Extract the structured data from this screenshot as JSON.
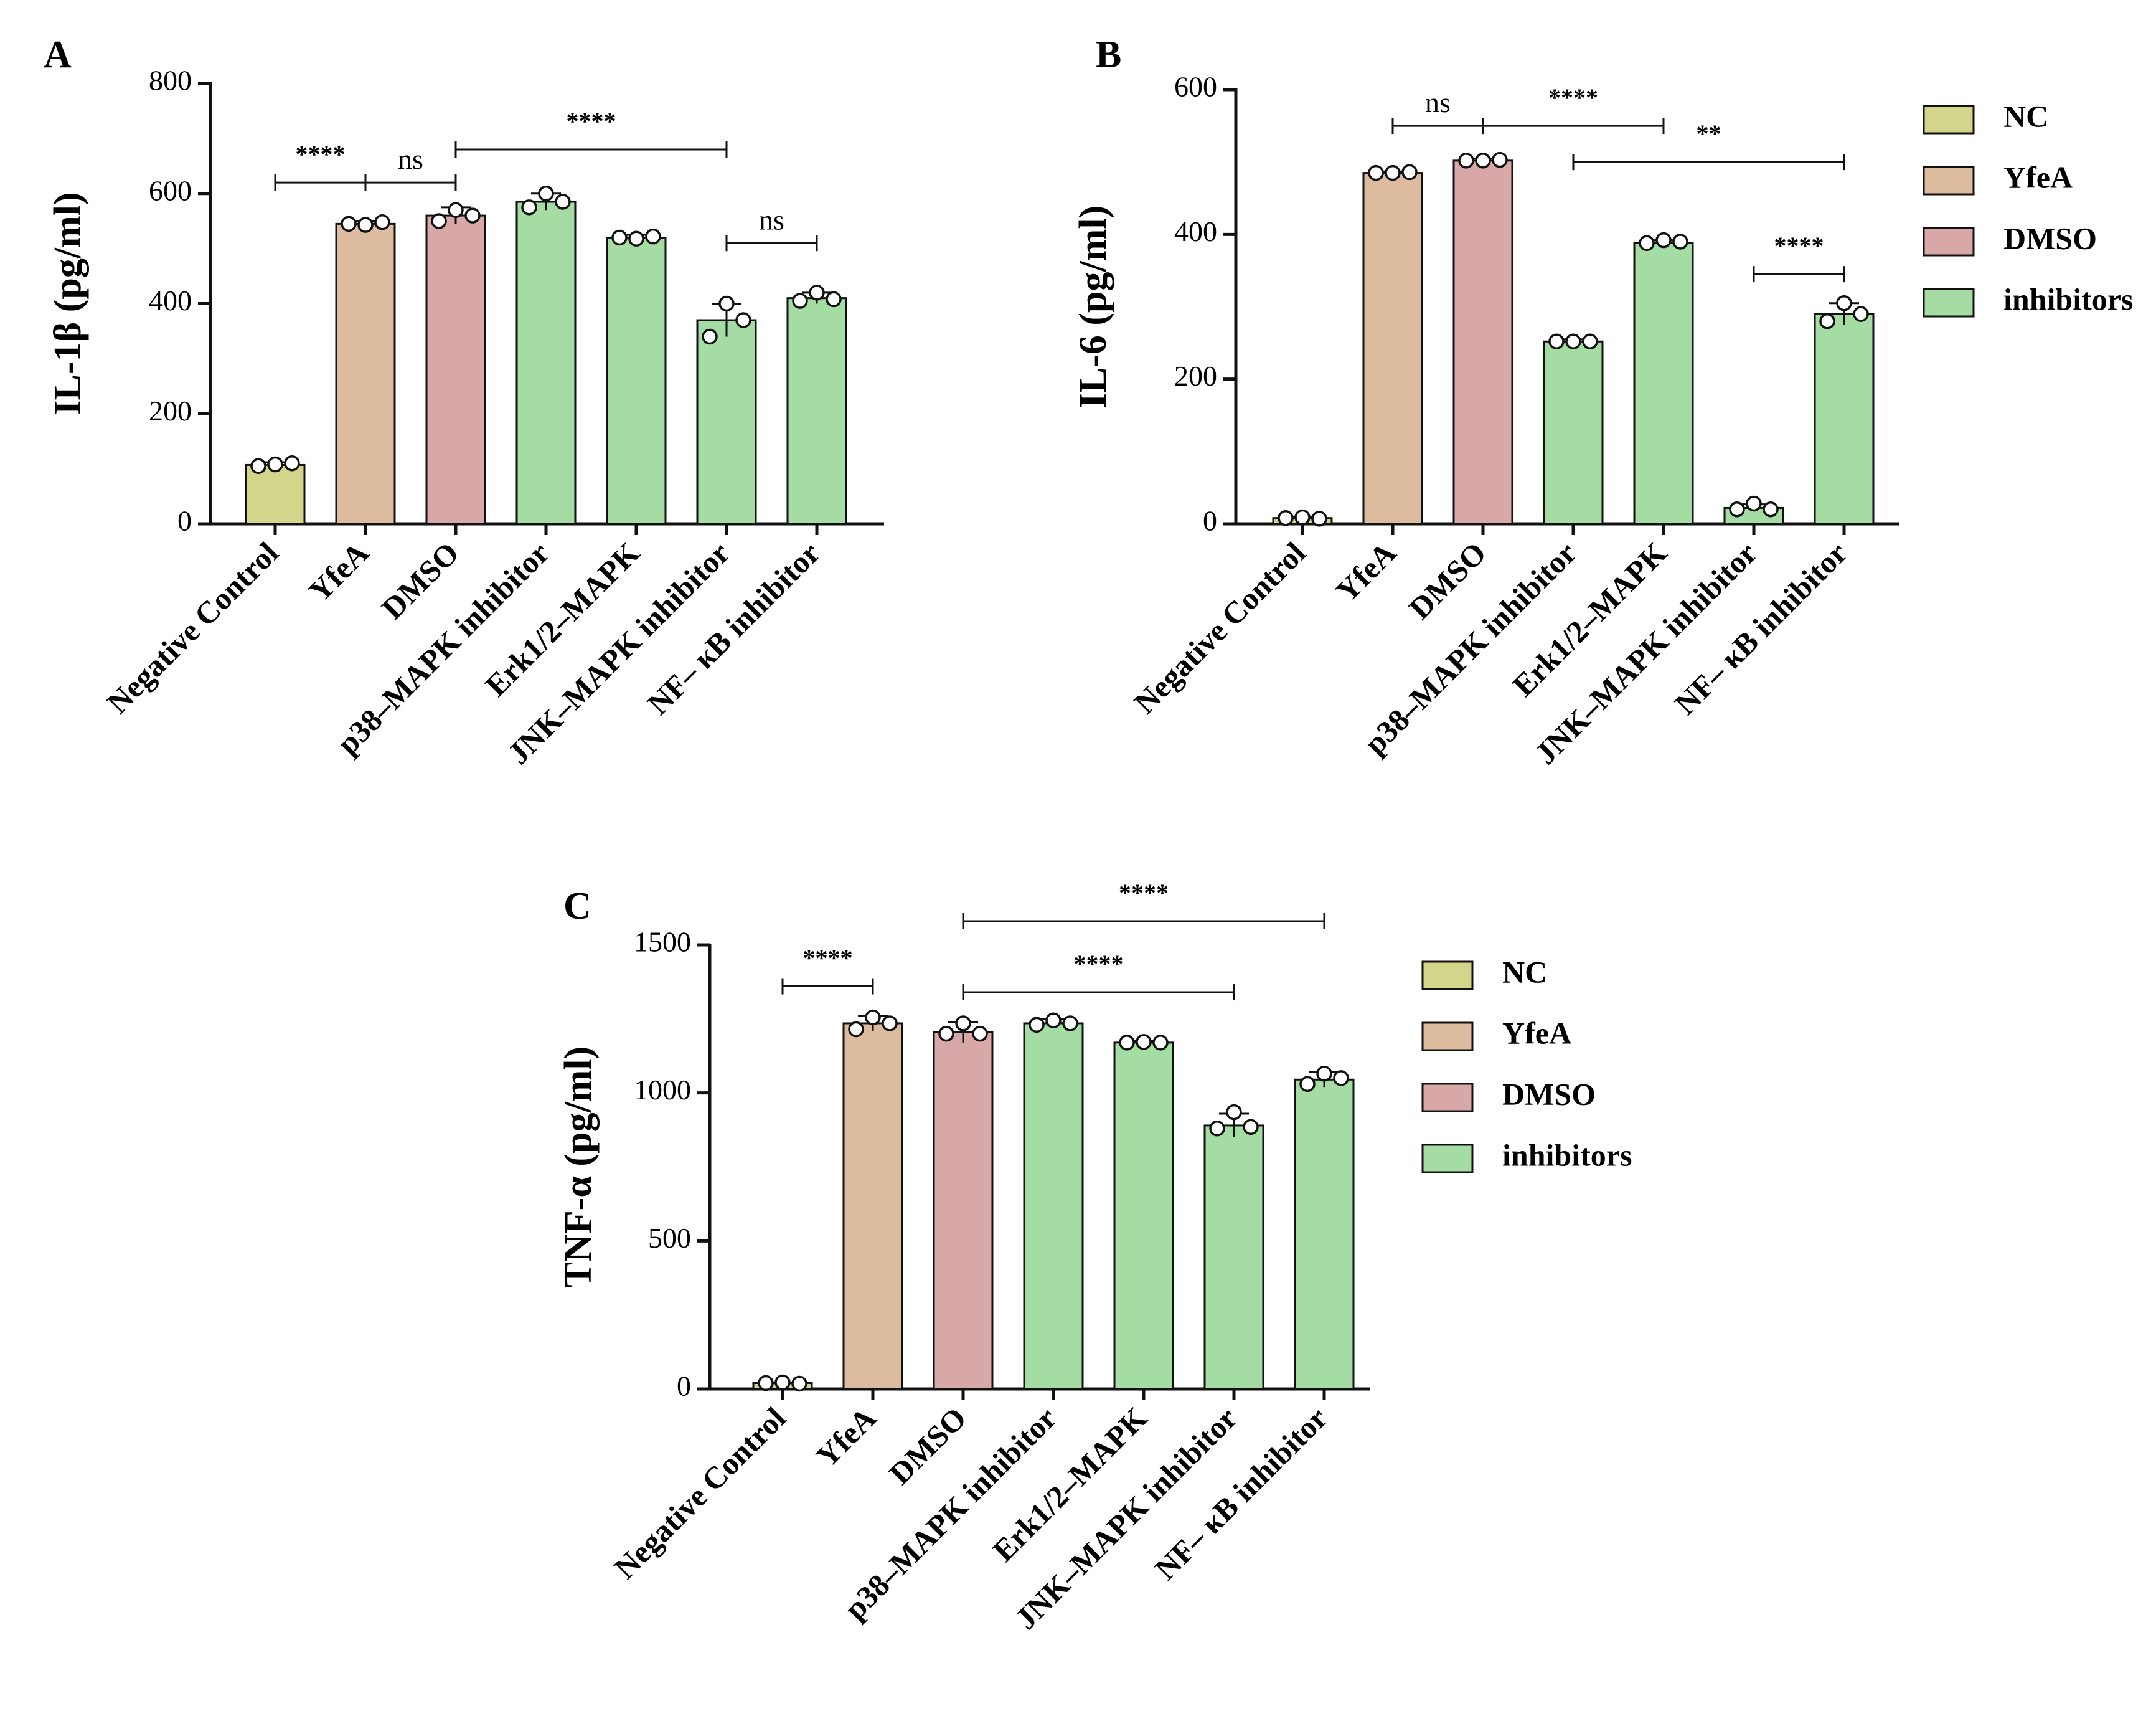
{
  "colors": {
    "NC": "#d3d58a",
    "YfeA": "#dcbb9e",
    "DMSO": "#d8a8a8",
    "inhibitors": "#a4dca4",
    "stroke": "#111111"
  },
  "categories": [
    "Negative Control",
    "YfeA",
    "DMSO",
    "p38–MAPK inhibitor",
    "Erk1/2–MAPK",
    "JNK–MAPK inhibitor",
    "NF– κB inhibitor"
  ],
  "groups": [
    "NC",
    "YfeA",
    "DMSO",
    "inhibitors",
    "inhibitors",
    "inhibitors",
    "inhibitors"
  ],
  "legend": [
    "NC",
    "YfeA",
    "DMSO",
    "inhibitors"
  ],
  "chart_data": [
    {
      "panel": "A",
      "type": "bar",
      "ylabel": "IL-1β (pg/ml)",
      "ylim": [
        0,
        800
      ],
      "yticks": [
        0,
        200,
        400,
        600,
        800
      ],
      "values": [
        107,
        545,
        560,
        585,
        520,
        370,
        410
      ],
      "errors": [
        5,
        5,
        15,
        15,
        5,
        30,
        10
      ],
      "points": [
        [
          105,
          108,
          110
        ],
        [
          545,
          543,
          548
        ],
        [
          550,
          570,
          560
        ],
        [
          575,
          600,
          585
        ],
        [
          520,
          518,
          522
        ],
        [
          340,
          400,
          370
        ],
        [
          405,
          420,
          408
        ]
      ],
      "significance": [
        {
          "from": 0,
          "to": 1,
          "label": "****",
          "value": 620
        },
        {
          "from": 1,
          "to": 2,
          "label": "ns",
          "value": 620
        },
        {
          "from": 2,
          "to": 5,
          "label": "****",
          "value": 680
        },
        {
          "from": 5,
          "to": 6,
          "label": "ns",
          "value": 510
        }
      ]
    },
    {
      "panel": "B",
      "type": "bar",
      "ylabel": "IL-6 (pg/ml)",
      "ylim": [
        0,
        600
      ],
      "yticks": [
        0,
        200,
        400,
        600
      ],
      "values": [
        8,
        485,
        502,
        252,
        388,
        22,
        290
      ],
      "errors": [
        2,
        2,
        3,
        3,
        4,
        5,
        15
      ],
      "points": [
        [
          8,
          9,
          7
        ],
        [
          485,
          485,
          486
        ],
        [
          502,
          502,
          503
        ],
        [
          252,
          252,
          252
        ],
        [
          388,
          392,
          390
        ],
        [
          20,
          28,
          20
        ],
        [
          280,
          305,
          290
        ]
      ],
      "significance": [
        {
          "from": 1,
          "to": 2,
          "label": "ns",
          "value": 550
        },
        {
          "from": 2,
          "to": 4,
          "label": "****",
          "value": 550
        },
        {
          "from": 3,
          "to": 6,
          "label": "**",
          "value": 500
        },
        {
          "from": 5,
          "to": 6,
          "label": "****",
          "value": 345
        }
      ]
    },
    {
      "panel": "C",
      "type": "bar",
      "ylabel": "TNF-α (pg/ml)",
      "ylim": [
        0,
        1500
      ],
      "yticks": [
        0,
        500,
        1000,
        1500
      ],
      "values": [
        20,
        1235,
        1205,
        1235,
        1170,
        890,
        1045
      ],
      "errors": [
        2,
        25,
        35,
        15,
        5,
        40,
        25
      ],
      "points": [
        [
          20,
          22,
          18
        ],
        [
          1215,
          1255,
          1235
        ],
        [
          1200,
          1235,
          1200
        ],
        [
          1230,
          1245,
          1235
        ],
        [
          1170,
          1172,
          1170
        ],
        [
          880,
          935,
          885
        ],
        [
          1030,
          1065,
          1050
        ]
      ],
      "significance": [
        {
          "from": 0,
          "to": 1,
          "label": "****",
          "value": 1360
        },
        {
          "from": 2,
          "to": 5,
          "label": "****",
          "value": 1340
        },
        {
          "from": 2,
          "to": 6,
          "label": "****",
          "value": 1580
        }
      ]
    }
  ]
}
